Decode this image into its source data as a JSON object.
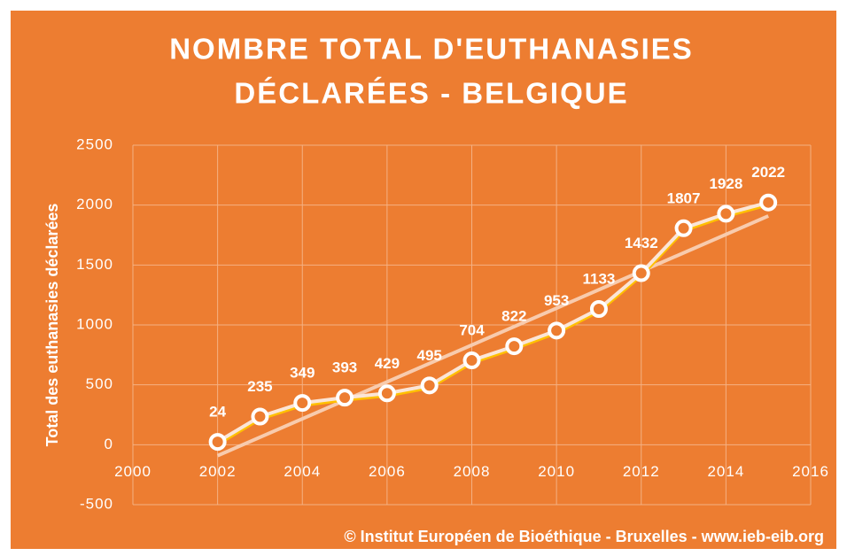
{
  "chart_data": {
    "type": "line",
    "title_lines": [
      "NOMBRE TOTAL D'EUTHANASIES",
      "DÉCLARÉES - BELGIQUE"
    ],
    "ylabel": "Total des euthanasies déclarées",
    "source": "© Institut Européen de Bioéthique - Bruxelles - www.ieb-eib.org",
    "x": [
      2002,
      2003,
      2004,
      2005,
      2006,
      2007,
      2008,
      2009,
      2010,
      2011,
      2012,
      2013,
      2014,
      2015
    ],
    "values": [
      24,
      235,
      349,
      393,
      429,
      495,
      704,
      822,
      953,
      1133,
      1432,
      1807,
      1928,
      2022
    ],
    "color": "#FFFFFF",
    "trendline": "linear",
    "trendline_color": "#F8CBAD",
    "xlim": [
      2000,
      2016
    ],
    "xticks": [
      2000,
      2002,
      2004,
      2006,
      2008,
      2010,
      2012,
      2014,
      2016
    ],
    "ylim": [
      -500,
      2500
    ],
    "yticks": [
      -500,
      0,
      500,
      1000,
      1500,
      2000,
      2500
    ],
    "grid": true,
    "background": "#ED7D31"
  }
}
